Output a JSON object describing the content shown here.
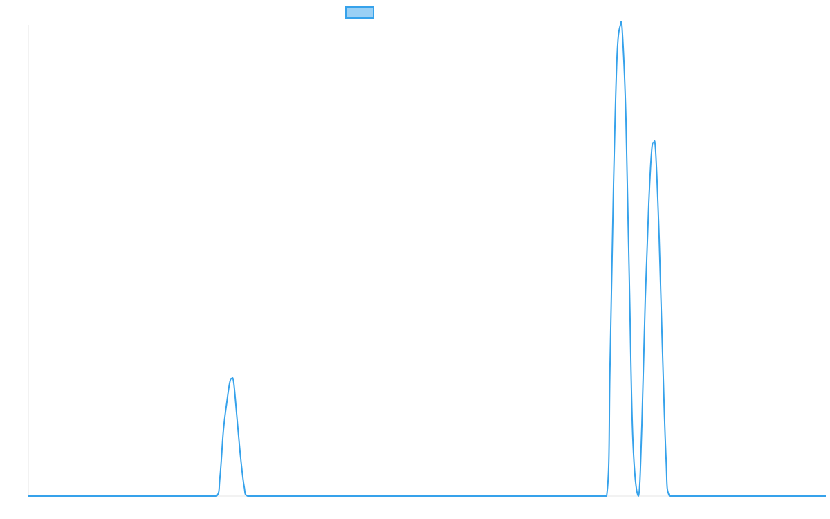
{
  "chart_data": {
    "type": "line",
    "title": "",
    "xlabel": "",
    "ylabel": "",
    "xlim": [
      0,
      1153
    ],
    "ylim": [
      0,
      1
    ],
    "grid": false,
    "legend": {
      "placement": "top-center",
      "entries": [
        {
          "label": "",
          "color": "#36a2eb",
          "fill": "#9ad0f5"
        }
      ]
    },
    "series": [
      {
        "color": "#36a2eb",
        "x": [
          0,
          272,
          277,
          282,
          287,
          291,
          294,
          297,
          302,
          307,
          312,
          317,
          836,
          841,
          846,
          851,
          856,
          859,
          864,
          869,
          874,
          882,
          887,
          892,
          897,
          901,
          904,
          907,
          912,
          917,
          922,
          927,
          1153
        ],
        "y": [
          0,
          0,
          0.04,
          0.14,
          0.2,
          0.24,
          0.25,
          0.24,
          0.16,
          0.08,
          0.02,
          0,
          0,
          0.28,
          0.66,
          0.93,
          1.0,
          0.98,
          0.8,
          0.45,
          0.12,
          0,
          0.15,
          0.42,
          0.62,
          0.73,
          0.75,
          0.73,
          0.55,
          0.3,
          0.08,
          0,
          0
        ]
      }
    ]
  }
}
